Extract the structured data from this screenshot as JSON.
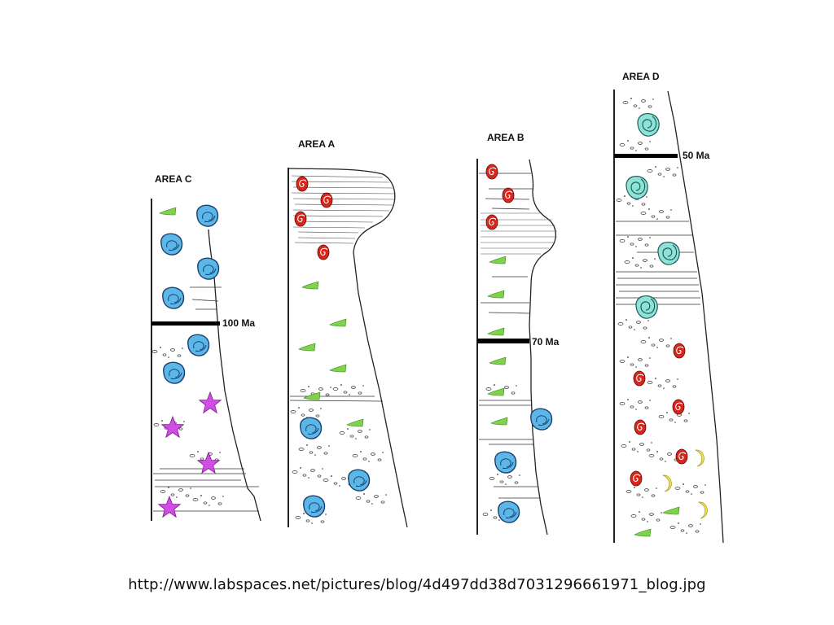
{
  "columns": [
    {
      "id": "area-c",
      "title": "AREA C",
      "marker": "100 Ma"
    },
    {
      "id": "area-a",
      "title": "AREA A",
      "marker": ""
    },
    {
      "id": "area-b",
      "title": "AREA B",
      "marker": "70 Ma"
    },
    {
      "id": "area-d",
      "title": "AREA D",
      "marker": "50 Ma"
    }
  ],
  "fossil_types": {
    "ammonite": {
      "icon": "ammonite-icon",
      "color": "#d9261c"
    },
    "shark_tooth": {
      "icon": "shark-tooth-icon",
      "color": "#7dd34a"
    },
    "clam": {
      "icon": "clam-icon",
      "color": "#5ab7e8"
    },
    "starfish": {
      "icon": "starfish-icon",
      "color": "#d24ce6"
    },
    "snail": {
      "icon": "snail-icon",
      "color": "#8fe3d6"
    },
    "crescent": {
      "icon": "crescent-icon",
      "color": "#f0e24a"
    }
  },
  "source": "http://www.labspaces.net/pictures/blog/4d497dd38d7031296661971_blog.jpg"
}
